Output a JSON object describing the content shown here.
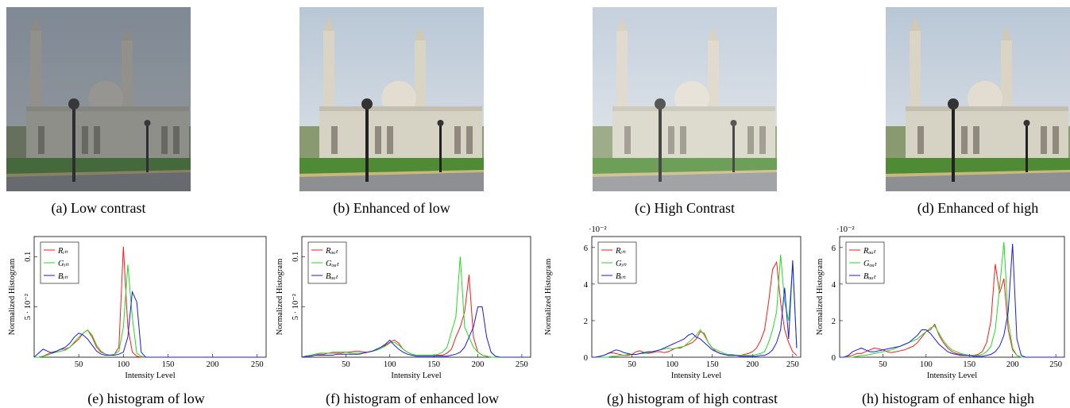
{
  "images": [
    {
      "caption": "(a) Low contrast"
    },
    {
      "caption": "(b) Enhanced of low"
    },
    {
      "caption": "(c) High Contrast"
    },
    {
      "caption": "(d) Enhanced of high"
    }
  ],
  "chart_data": [
    {
      "type": "line",
      "caption": "(e) histogram of low",
      "xlabel": "Intensity Level",
      "ylabel": "Normalized Histogram",
      "legend": "upper left",
      "xlim": [
        0,
        260
      ],
      "xticks": [
        50,
        100,
        150,
        200,
        250
      ],
      "ylim": [
        0,
        0.12
      ],
      "yticks": [
        {
          "value": 0.05,
          "label": "5 · 10⁻²"
        },
        0.1
      ],
      "x": [
        0,
        5,
        10,
        15,
        20,
        25,
        30,
        35,
        40,
        45,
        50,
        55,
        60,
        65,
        70,
        75,
        80,
        85,
        90,
        95,
        100,
        105,
        110,
        115,
        120,
        125,
        130,
        135,
        140,
        145,
        150,
        155,
        160,
        165,
        170,
        175,
        180,
        185,
        190,
        195,
        200,
        205,
        210,
        215,
        220,
        225,
        230,
        235,
        240,
        245,
        250,
        255
      ],
      "series": [
        {
          "name": "Rᵢₙ",
          "color": "#ff1a1a",
          "values": [
            0,
            0,
            0.001,
            0.003,
            0.005,
            0.006,
            0.008,
            0.008,
            0.01,
            0.014,
            0.018,
            0.024,
            0.027,
            0.02,
            0.01,
            0.005,
            0.003,
            0.002,
            0.003,
            0.01,
            0.11,
            0.03,
            0.005,
            0.001,
            0,
            0,
            0,
            0,
            0,
            0,
            0,
            0,
            0,
            0,
            0,
            0,
            0,
            0,
            0,
            0,
            0,
            0,
            0,
            0,
            0,
            0,
            0,
            0,
            0,
            0,
            0,
            0
          ]
        },
        {
          "name": "Gᵢₙ",
          "color": "#22dd22",
          "values": [
            0,
            0,
            0.001,
            0.002,
            0.004,
            0.005,
            0.006,
            0.007,
            0.01,
            0.015,
            0.02,
            0.024,
            0.027,
            0.022,
            0.012,
            0.006,
            0.003,
            0.002,
            0.003,
            0.006,
            0.03,
            0.092,
            0.04,
            0.004,
            0.001,
            0,
            0,
            0,
            0,
            0,
            0,
            0,
            0,
            0,
            0,
            0,
            0,
            0,
            0,
            0,
            0,
            0,
            0,
            0,
            0,
            0,
            0,
            0,
            0,
            0,
            0,
            0
          ]
        },
        {
          "name": "Bᵢₙ",
          "color": "#1a1aee",
          "values": [
            0,
            0.004,
            0.008,
            0.006,
            0.004,
            0.006,
            0.008,
            0.01,
            0.014,
            0.02,
            0.024,
            0.022,
            0.018,
            0.012,
            0.006,
            0.003,
            0.002,
            0.002,
            0.002,
            0.003,
            0.005,
            0.02,
            0.065,
            0.055,
            0.005,
            0,
            0,
            0,
            0,
            0,
            0,
            0,
            0,
            0,
            0,
            0,
            0,
            0,
            0,
            0,
            0,
            0,
            0,
            0,
            0,
            0,
            0,
            0,
            0,
            0,
            0,
            0
          ]
        }
      ]
    },
    {
      "type": "line",
      "caption": "(f) histogram of enhanced low",
      "xlabel": "Intensity Level",
      "ylabel": "Normalized Histogram",
      "legend": "upper left",
      "xlim": [
        0,
        260
      ],
      "xticks": [
        50,
        100,
        150,
        200,
        250
      ],
      "ylim": [
        0,
        0.12
      ],
      "yticks": [
        {
          "value": 0.05,
          "label": "5 · 10⁻²"
        },
        0.1
      ],
      "x": [
        0,
        5,
        10,
        15,
        20,
        25,
        30,
        35,
        40,
        45,
        50,
        55,
        60,
        65,
        70,
        75,
        80,
        85,
        90,
        95,
        100,
        105,
        110,
        115,
        120,
        125,
        130,
        135,
        140,
        145,
        150,
        155,
        160,
        165,
        170,
        175,
        180,
        185,
        190,
        195,
        200,
        205,
        210,
        215,
        220,
        225,
        230,
        235,
        240,
        245,
        250,
        255
      ],
      "series": [
        {
          "name": "Rₒᵤₜ",
          "color": "#ff1a1a",
          "values": [
            0,
            0.001,
            0.002,
            0.003,
            0.003,
            0.003,
            0.004,
            0.004,
            0.004,
            0.004,
            0.005,
            0.005,
            0.006,
            0.006,
            0.005,
            0.005,
            0.006,
            0.007,
            0.009,
            0.012,
            0.015,
            0.017,
            0.014,
            0.008,
            0.005,
            0.003,
            0.002,
            0.002,
            0.002,
            0.002,
            0.002,
            0.002,
            0.002,
            0.004,
            0.008,
            0.02,
            0.03,
            0.045,
            0.082,
            0.02,
            0.005,
            0.002,
            0.001,
            0,
            0,
            0,
            0,
            0,
            0,
            0,
            0,
            0
          ]
        },
        {
          "name": "Gₒᵤₜ",
          "color": "#22dd22",
          "values": [
            0,
            0.001,
            0.002,
            0.003,
            0.004,
            0.004,
            0.004,
            0.005,
            0.005,
            0.005,
            0.005,
            0.004,
            0.004,
            0.004,
            0.004,
            0.005,
            0.006,
            0.007,
            0.009,
            0.011,
            0.014,
            0.015,
            0.012,
            0.008,
            0.005,
            0.003,
            0.002,
            0.002,
            0.002,
            0.002,
            0.002,
            0.003,
            0.005,
            0.01,
            0.025,
            0.04,
            0.1,
            0.03,
            0.02,
            0.01,
            0.005,
            0.002,
            0.001,
            0,
            0,
            0,
            0,
            0,
            0,
            0,
            0,
            0
          ]
        },
        {
          "name": "Bₒᵤₜ",
          "color": "#1a1aee",
          "values": [
            0,
            0.001,
            0.001,
            0.002,
            0.002,
            0.002,
            0.002,
            0.002,
            0.003,
            0.003,
            0.003,
            0.003,
            0.003,
            0.003,
            0.004,
            0.005,
            0.006,
            0.008,
            0.01,
            0.013,
            0.017,
            0.012,
            0.008,
            0.005,
            0.003,
            0.002,
            0.001,
            0.001,
            0.001,
            0.001,
            0.001,
            0.001,
            0.001,
            0.001,
            0.002,
            0.003,
            0.005,
            0.01,
            0.02,
            0.03,
            0.05,
            0.05,
            0.02,
            0.005,
            0.001,
            0,
            0,
            0,
            0,
            0,
            0,
            0
          ]
        }
      ]
    },
    {
      "type": "line",
      "caption": "(g) histogram of high contrast",
      "xlabel": "Intensity Level",
      "ylabel": "Normalized Histogram",
      "legend": "upper left",
      "y_multiplier": "·10⁻²",
      "xlim": [
        0,
        260
      ],
      "xticks": [
        50,
        100,
        150,
        200,
        250
      ],
      "ylim": [
        0,
        6.6
      ],
      "yticks": [
        0,
        2,
        4,
        6
      ],
      "x": [
        0,
        5,
        10,
        15,
        20,
        25,
        30,
        35,
        40,
        45,
        50,
        55,
        60,
        65,
        70,
        75,
        80,
        85,
        90,
        95,
        100,
        105,
        110,
        115,
        120,
        125,
        130,
        135,
        140,
        145,
        150,
        155,
        160,
        165,
        170,
        175,
        180,
        185,
        190,
        195,
        200,
        205,
        210,
        215,
        220,
        225,
        230,
        235,
        240,
        245,
        250,
        255
      ],
      "series": [
        {
          "name": "Rᵢₙ",
          "color": "#ff1a1a",
          "values": [
            0,
            0,
            0.05,
            0.1,
            0.2,
            0.25,
            0.2,
            0.15,
            0.1,
            0.1,
            0.15,
            0.3,
            0.35,
            0.25,
            0.2,
            0.25,
            0.3,
            0.3,
            0.25,
            0.3,
            0.4,
            0.5,
            0.5,
            0.6,
            0.7,
            0.8,
            1,
            1.4,
            1.3,
            0.8,
            0.5,
            0.3,
            0.2,
            0.15,
            0.1,
            0.1,
            0.1,
            0.1,
            0.15,
            0.2,
            0.3,
            0.5,
            0.9,
            1.5,
            3,
            4.8,
            5.2,
            3,
            1.5,
            0.8,
            0.3,
            0.1
          ]
        },
        {
          "name": "Gᵢₙ",
          "color": "#22dd22",
          "values": [
            0,
            0,
            0,
            0,
            0,
            0.05,
            0.05,
            0.1,
            0.1,
            0.15,
            0.15,
            0.15,
            0.2,
            0.2,
            0.25,
            0.3,
            0.35,
            0.4,
            0.45,
            0.5,
            0.45,
            0.5,
            0.55,
            0.6,
            0.8,
            1,
            1.2,
            1.5,
            1.2,
            0.8,
            0.5,
            0.4,
            0.3,
            0.2,
            0.15,
            0.15,
            0.1,
            0.1,
            0.1,
            0.1,
            0.1,
            0.15,
            0.2,
            0.3,
            0.8,
            1.5,
            2.5,
            5.6,
            3,
            2,
            5.1,
            0.5
          ]
        },
        {
          "name": "Bᵢₙ",
          "color": "#1a1aee",
          "values": [
            0,
            0,
            0.05,
            0.1,
            0.2,
            0.3,
            0.4,
            0.35,
            0.25,
            0.2,
            0.15,
            0.15,
            0.2,
            0.25,
            0.3,
            0.3,
            0.35,
            0.4,
            0.5,
            0.6,
            0.7,
            0.8,
            0.9,
            1,
            1.2,
            1.3,
            1.1,
            1,
            0.8,
            0.6,
            0.4,
            0.3,
            0.2,
            0.15,
            0.1,
            0.1,
            0.1,
            0.05,
            0.05,
            0.05,
            0.05,
            0.05,
            0.1,
            0.1,
            0.2,
            0.4,
            0.8,
            1.5,
            3.8,
            1,
            5.3,
            0.5
          ]
        }
      ]
    },
    {
      "type": "line",
      "caption": "(h) histogram of enhance high",
      "xlabel": "Intensity Level",
      "ylabel": "Normalized Histogram",
      "legend": "upper left",
      "y_multiplier": "·10⁻²",
      "xlim": [
        0,
        260
      ],
      "xticks": [
        50,
        100,
        150,
        200,
        250
      ],
      "ylim": [
        0,
        6.6
      ],
      "yticks": [
        0,
        2,
        4,
        6
      ],
      "x": [
        0,
        5,
        10,
        15,
        20,
        25,
        30,
        35,
        40,
        45,
        50,
        55,
        60,
        65,
        70,
        75,
        80,
        85,
        90,
        95,
        100,
        105,
        110,
        115,
        120,
        125,
        130,
        135,
        140,
        145,
        150,
        155,
        160,
        165,
        170,
        175,
        180,
        185,
        190,
        195,
        200,
        205,
        210,
        215,
        220,
        225,
        230,
        235,
        240,
        245,
        250,
        255
      ],
      "series": [
        {
          "name": "Rₒᵤₜ",
          "color": "#ff1a1a",
          "values": [
            0,
            0,
            0.05,
            0.1,
            0.2,
            0.2,
            0.3,
            0.4,
            0.5,
            0.45,
            0.4,
            0.3,
            0.25,
            0.3,
            0.35,
            0.4,
            0.5,
            0.6,
            0.8,
            1.1,
            1.4,
            1.5,
            1.8,
            1.2,
            0.8,
            0.5,
            0.3,
            0.2,
            0.15,
            0.1,
            0.1,
            0.1,
            0.15,
            0.3,
            0.8,
            2,
            5.1,
            3.5,
            4.3,
            1.5,
            0.4,
            0.1,
            0,
            0,
            0,
            0,
            0,
            0,
            0,
            0,
            0,
            0
          ]
        },
        {
          "name": "Gₒᵤₜ",
          "color": "#22dd22",
          "values": [
            0,
            0,
            0,
            0,
            0.05,
            0.1,
            0.1,
            0.15,
            0.2,
            0.25,
            0.3,
            0.35,
            0.4,
            0.5,
            0.6,
            0.7,
            0.8,
            0.9,
            1,
            1.2,
            1.4,
            1.6,
            1.7,
            1.3,
            0.9,
            0.6,
            0.4,
            0.3,
            0.2,
            0.15,
            0.1,
            0.1,
            0.1,
            0.15,
            0.3,
            0.6,
            1.5,
            3.8,
            6.3,
            2,
            0.5,
            0.1,
            0,
            0,
            0,
            0,
            0,
            0,
            0,
            0,
            0,
            0
          ]
        },
        {
          "name": "Bₒᵤₜ",
          "color": "#1a1aee",
          "values": [
            0,
            0,
            0.1,
            0.3,
            0.4,
            0.5,
            0.4,
            0.3,
            0.3,
            0.35,
            0.4,
            0.45,
            0.5,
            0.55,
            0.6,
            0.7,
            0.8,
            1,
            1.2,
            1.5,
            1.5,
            1.3,
            1,
            0.7,
            0.5,
            0.3,
            0.2,
            0.15,
            0.1,
            0.1,
            0.1,
            0.05,
            0.05,
            0.05,
            0.1,
            0.15,
            0.3,
            0.6,
            1.2,
            2.5,
            6.2,
            1,
            0.1,
            0,
            0,
            0,
            0,
            0,
            0,
            0,
            0,
            0
          ]
        }
      ]
    }
  ]
}
